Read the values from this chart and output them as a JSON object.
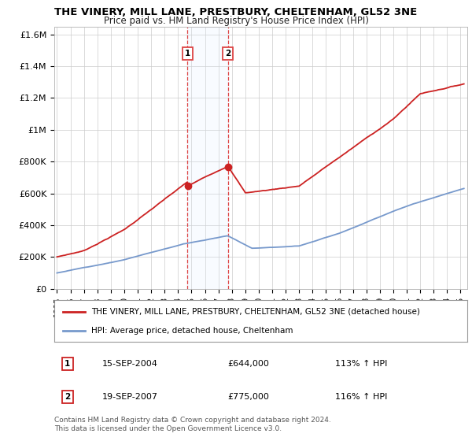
{
  "title": "THE VINERY, MILL LANE, PRESTBURY, CHELTENHAM, GL52 3NE",
  "subtitle": "Price paid vs. HM Land Registry's House Price Index (HPI)",
  "hpi_label": "HPI: Average price, detached house, Cheltenham",
  "property_label": "THE VINERY, MILL LANE, PRESTBURY, CHELTENHAM, GL52 3NE (detached house)",
  "sale1_date": "15-SEP-2004",
  "sale1_price": 644000,
  "sale1_hpi": "113%",
  "sale1_x": 2004.71,
  "sale2_date": "19-SEP-2007",
  "sale2_price": 775000,
  "sale2_hpi": "116%",
  "sale2_x": 2007.71,
  "ylim": [
    0,
    1650000
  ],
  "xlim_start": 1994.8,
  "xlim_end": 2025.5,
  "hpi_color": "#7799cc",
  "property_color": "#cc2222",
  "shade_color": "#ddeeff",
  "vline_color": "#dd4444",
  "copyright_text": "Contains HM Land Registry data © Crown copyright and database right 2024.\nThis data is licensed under the Open Government Licence v3.0.",
  "yticks": [
    0,
    200000,
    400000,
    600000,
    800000,
    1000000,
    1200000,
    1400000,
    1600000
  ],
  "ytick_labels": [
    "£0",
    "£200K",
    "£400K",
    "£600K",
    "£800K",
    "£1M",
    "£1.2M",
    "£1.4M",
    "£1.6M"
  ]
}
